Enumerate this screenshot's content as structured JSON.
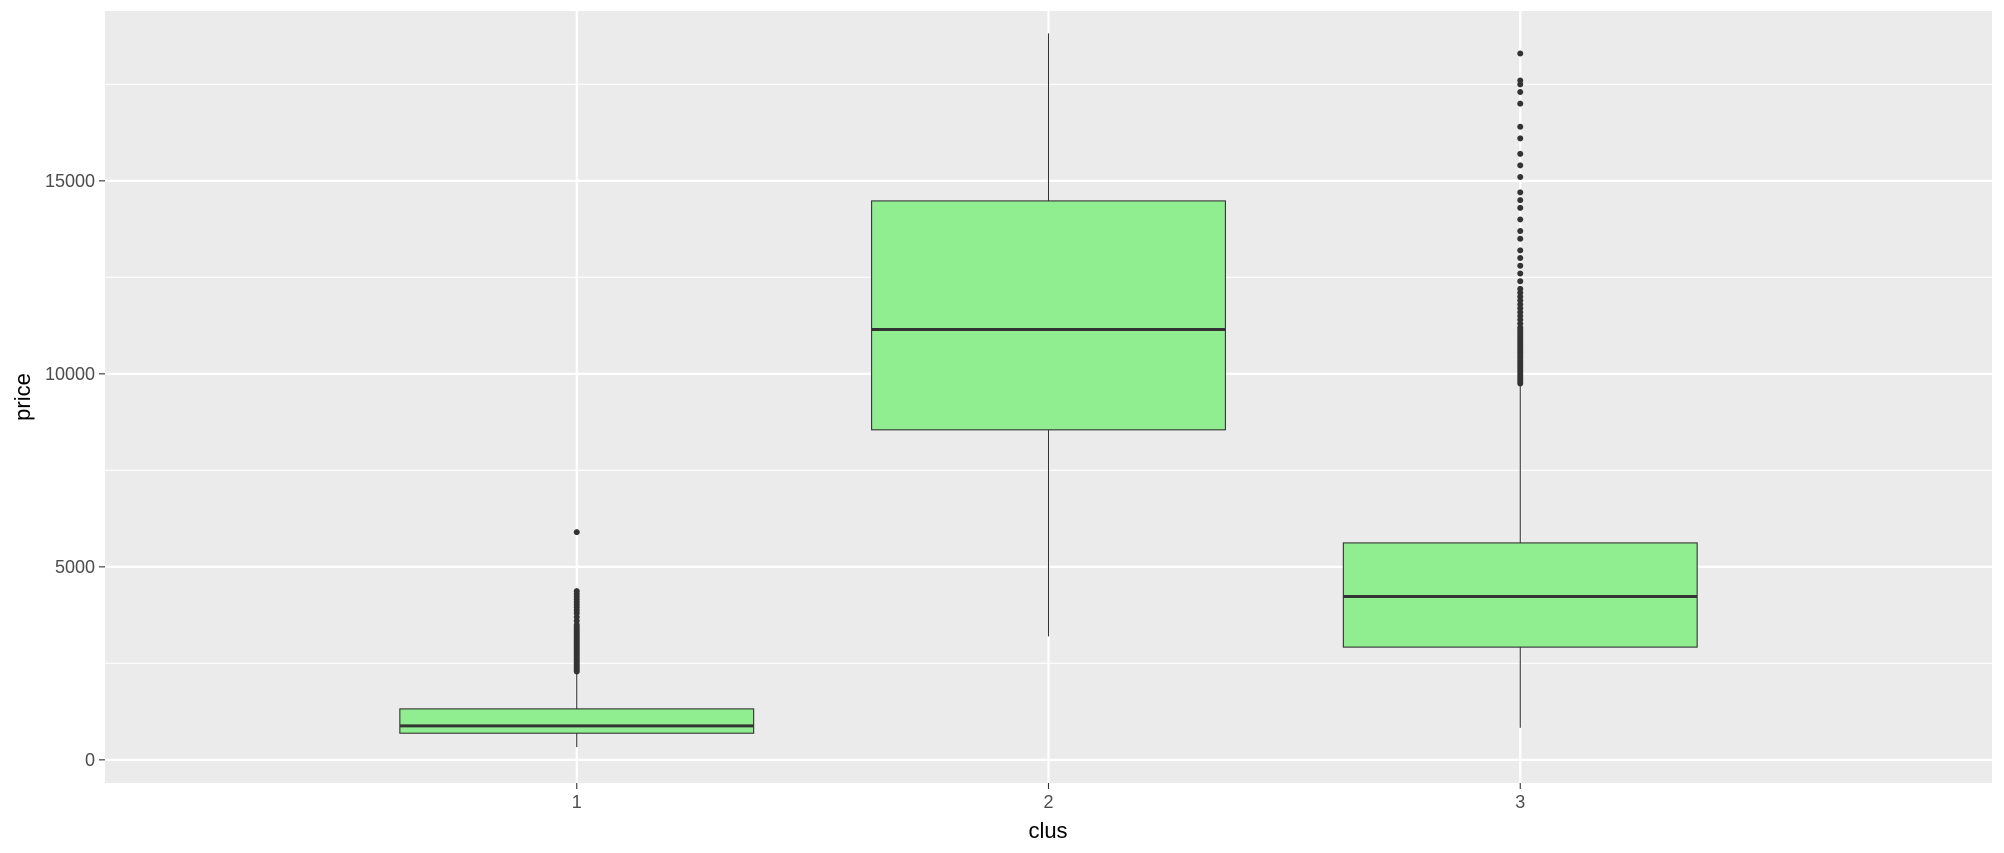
{
  "chart_data": {
    "type": "boxplot",
    "xlabel": "clus",
    "ylabel": "price",
    "categories": [
      "1",
      "2",
      "3"
    ],
    "ylim": [
      -600,
      19400
    ],
    "yticks": [
      0,
      5000,
      10000,
      15000
    ],
    "grid": true,
    "box_fill": "#90EE90",
    "box_stroke": "#333333",
    "panel_background": "#EBEBEB",
    "grid_color": "#FFFFFF",
    "boxes": [
      {
        "category": "1",
        "whisker_low": 330,
        "q1": 690,
        "median": 880,
        "q3": 1320,
        "whisker_high": 2250,
        "outliers": [
          2290,
          2330,
          2370,
          2410,
          2450,
          2490,
          2530,
          2570,
          2610,
          2650,
          2690,
          2730,
          2770,
          2810,
          2850,
          2890,
          2930,
          2970,
          3010,
          3050,
          3090,
          3130,
          3170,
          3210,
          3250,
          3290,
          3330,
          3370,
          3410,
          3450,
          3500,
          3600,
          3700,
          3800,
          3880,
          3950,
          4020,
          4090,
          4160,
          4230,
          4300,
          4370,
          5900
        ]
      },
      {
        "category": "2",
        "whisker_low": 3200,
        "q1": 8550,
        "median": 11150,
        "q3": 14480,
        "whisker_high": 18820,
        "outliers": []
      },
      {
        "category": "3",
        "whisker_low": 830,
        "q1": 2920,
        "median": 4230,
        "q3": 5620,
        "whisker_high": 9700,
        "outliers": [
          9750,
          9800,
          9850,
          9900,
          9950,
          10000,
          10050,
          10100,
          10150,
          10200,
          10250,
          10300,
          10350,
          10400,
          10450,
          10500,
          10550,
          10600,
          10650,
          10700,
          10750,
          10800,
          10850,
          10900,
          10950,
          11000,
          11050,
          11100,
          11150,
          11200,
          11300,
          11400,
          11500,
          11600,
          11700,
          11800,
          11900,
          12000,
          12100,
          12200,
          12400,
          12600,
          12800,
          13000,
          13200,
          13500,
          13700,
          14000,
          14300,
          14500,
          14700,
          15100,
          15400,
          15700,
          16100,
          16400,
          17000,
          17300,
          17500,
          17600,
          18300
        ]
      }
    ]
  }
}
